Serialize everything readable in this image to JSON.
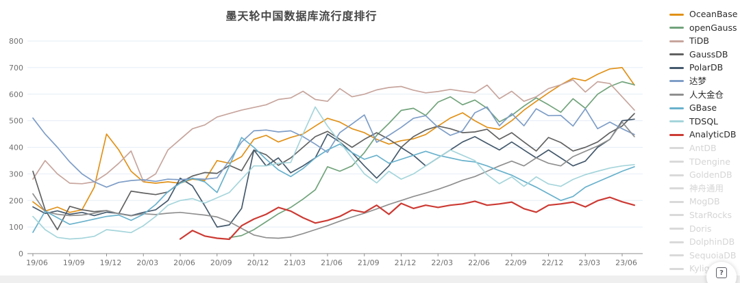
{
  "title": "墨天轮中国数据库流行度排行",
  "help_button": {
    "icon": "?"
  },
  "chart_data": {
    "type": "line",
    "title": "墨天轮中国数据库流行度排行",
    "xlabel": "",
    "ylabel": "",
    "ylim": [
      0,
      800
    ],
    "y_ticks": [
      0,
      100,
      200,
      300,
      400,
      500,
      600,
      700,
      800
    ],
    "x_tick_every": 3,
    "grid": true,
    "legend_position": "right",
    "x": [
      "19/06",
      "19/07",
      "19/08",
      "19/09",
      "19/10",
      "19/11",
      "19/12",
      "20/01",
      "20/02",
      "20/03",
      "20/04",
      "20/05",
      "20/06",
      "20/07",
      "20/08",
      "20/09",
      "20/10",
      "20/11",
      "20/12",
      "21/01",
      "21/02",
      "21/03",
      "21/04",
      "21/05",
      "21/06",
      "21/07",
      "21/08",
      "21/09",
      "21/10",
      "21/11",
      "21/12",
      "22/01",
      "22/02",
      "22/03",
      "22/04",
      "22/05",
      "22/06",
      "22/07",
      "22/08",
      "22/09",
      "22/10",
      "22/11",
      "22/12",
      "23/01",
      "23/02",
      "23/03",
      "23/04",
      "23/05",
      "23/06",
      "23/07"
    ],
    "series": [
      {
        "name": "OceanBase",
        "color": "#e19117",
        "enabled": true,
        "values": [
          195,
          160,
          175,
          155,
          165,
          250,
          450,
          390,
          310,
          270,
          265,
          270,
          265,
          280,
          275,
          350,
          340,
          365,
          430,
          445,
          420,
          437,
          450,
          480,
          509,
          495,
          470,
          455,
          430,
          412,
          425,
          432,
          448,
          480,
          510,
          530,
          500,
          475,
          468,
          500,
          540,
          573,
          605,
          635,
          660,
          650,
          675,
          695,
          700,
          634
        ]
      },
      {
        "name": "openGauss",
        "color": "#71a37b",
        "enabled": true,
        "values": [
          null,
          null,
          null,
          null,
          null,
          null,
          null,
          null,
          null,
          null,
          null,
          null,
          null,
          null,
          null,
          null,
          60,
          68,
          90,
          120,
          150,
          174,
          205,
          240,
          327,
          310,
          330,
          380,
          445,
          490,
          539,
          547,
          520,
          570,
          590,
          560,
          578,
          547,
          496,
          520,
          555,
          586,
          560,
          532,
          583,
          547,
          600,
          629,
          647,
          635
        ]
      },
      {
        "name": "TiDB",
        "color": "#c7a59d",
        "enabled": true,
        "values": [
          280,
          350,
          300,
          265,
          263,
          270,
          300,
          340,
          386,
          271,
          300,
          390,
          430,
          470,
          484,
          514,
          527,
          540,
          550,
          560,
          580,
          586,
          611,
          580,
          573,
          621,
          590,
          600,
          616,
          625,
          629,
          615,
          605,
          610,
          618,
          611,
          605,
          634,
          583,
          611,
          573,
          590,
          621,
          635,
          654,
          608,
          647,
          640,
          590,
          540
        ]
      },
      {
        "name": "GaussDB",
        "color": "#616161",
        "enabled": true,
        "values": [
          310,
          165,
          90,
          178,
          165,
          158,
          162,
          150,
          235,
          228,
          222,
          232,
          268,
          292,
          305,
          302,
          332,
          312,
          390,
          372,
          332,
          360,
          400,
          440,
          460,
          430,
          400,
          430,
          455,
          430,
          400,
          440,
          465,
          480,
          470,
          455,
          458,
          468,
          430,
          455,
          420,
          386,
          437,
          418,
          386,
          400,
          420,
          455,
          480,
          527
        ]
      },
      {
        "name": "PolarDB",
        "color": "#44596c",
        "enabled": true,
        "values": [
          176,
          151,
          161,
          148,
          155,
          143,
          156,
          151,
          143,
          155,
          165,
          200,
          284,
          255,
          180,
          100,
          108,
          170,
          390,
          330,
          360,
          304,
          330,
          360,
          450,
          420,
          380,
          330,
          284,
          330,
          399,
          370,
          330,
          360,
          390,
          420,
          440,
          415,
          390,
          420,
          390,
          360,
          390,
          360,
          330,
          348,
          400,
          430,
          500,
          506
        ]
      },
      {
        "name": "达梦",
        "color": "#7e9dc7",
        "enabled": true,
        "values": [
          510,
          450,
          400,
          345,
          300,
          270,
          250,
          268,
          275,
          278,
          272,
          280,
          278,
          282,
          280,
          285,
          350,
          420,
          462,
          465,
          458,
          462,
          440,
          412,
          381,
          455,
          488,
          522,
          419,
          445,
          475,
          509,
          519,
          475,
          445,
          462,
          530,
          552,
          481,
          527,
          481,
          545,
          519,
          520,
          480,
          545,
          470,
          495,
          470,
          448
        ]
      },
      {
        "name": "人大金仓",
        "color": "#8f8f8f",
        "enabled": true,
        "values": [
          225,
          158,
          148,
          143,
          145,
          152,
          162,
          150,
          142,
          150,
          147,
          152,
          155,
          150,
          145,
          138,
          120,
          95,
          70,
          60,
          58,
          62,
          75,
          90,
          105,
          122,
          138,
          152,
          168,
          185,
          200,
          215,
          228,
          242,
          258,
          276,
          290,
          310,
          330,
          348,
          330,
          360,
          340,
          330,
          365,
          385,
          405,
          430,
          495,
          440
        ]
      },
      {
        "name": "GBase",
        "color": "#68b1cc",
        "enabled": true,
        "values": [
          80,
          160,
          135,
          110,
          120,
          130,
          140,
          145,
          125,
          148,
          185,
          233,
          265,
          284,
          270,
          230,
          330,
          437,
          400,
          355,
          315,
          290,
          320,
          360,
          390,
          412,
          380,
          355,
          370,
          340,
          355,
          370,
          385,
          370,
          360,
          350,
          345,
          330,
          312,
          295,
          272,
          250,
          225,
          200,
          215,
          250,
          270,
          290,
          310,
          327
        ]
      },
      {
        "name": "TDSQL",
        "color": "#a5d5db",
        "enabled": true,
        "values": [
          140,
          90,
          61,
          55,
          58,
          65,
          90,
          85,
          79,
          105,
          140,
          182,
          200,
          207,
          190,
          210,
          230,
          280,
          330,
          330,
          340,
          343,
          450,
          552,
          480,
          420,
          360,
          300,
          266,
          310,
          280,
          300,
          330,
          360,
          390,
          370,
          350,
          297,
          263,
          289,
          253,
          289,
          262,
          253,
          279,
          297,
          310,
          322,
          330,
          335
        ]
      },
      {
        "name": "AnalyticDB",
        "color": "#cc3a33",
        "enabled": true,
        "emphasis": true,
        "values": [
          null,
          null,
          null,
          null,
          null,
          null,
          null,
          null,
          null,
          null,
          null,
          null,
          55,
          87,
          66,
          58,
          54,
          105,
          130,
          148,
          174,
          160,
          135,
          115,
          125,
          140,
          164,
          155,
          182,
          148,
          189,
          170,
          182,
          174,
          182,
          187,
          197,
          182,
          187,
          194,
          169,
          156,
          182,
          187,
          194,
          176,
          199,
          212,
          195,
          182
        ]
      },
      {
        "name": "AntDB",
        "color": "#d6d6d6",
        "enabled": false,
        "values": []
      },
      {
        "name": "TDengine",
        "color": "#d6d6d6",
        "enabled": false,
        "values": []
      },
      {
        "name": "GoldenDB",
        "color": "#d6d6d6",
        "enabled": false,
        "values": []
      },
      {
        "name": "神舟通用",
        "color": "#d6d6d6",
        "enabled": false,
        "values": []
      },
      {
        "name": "MogDB",
        "color": "#d6d6d6",
        "enabled": false,
        "values": []
      },
      {
        "name": "StarRocks",
        "color": "#d6d6d6",
        "enabled": false,
        "values": []
      },
      {
        "name": "Doris",
        "color": "#d6d6d6",
        "enabled": false,
        "values": []
      },
      {
        "name": "DolphinDB",
        "color": "#d6d6d6",
        "enabled": false,
        "values": []
      },
      {
        "name": "SequoiaDB",
        "color": "#d6d6d6",
        "enabled": false,
        "values": []
      },
      {
        "name": "Kyligence",
        "color": "#d6d6d6",
        "enabled": false,
        "values": []
      }
    ],
    "colors": {
      "grid_line": "#e4edf6",
      "axis_line": "#8e8e8e",
      "tick_text": "#707070",
      "legend_text_enabled": "#2b2b2b",
      "legend_text_disabled": "#d5d5d5"
    }
  }
}
